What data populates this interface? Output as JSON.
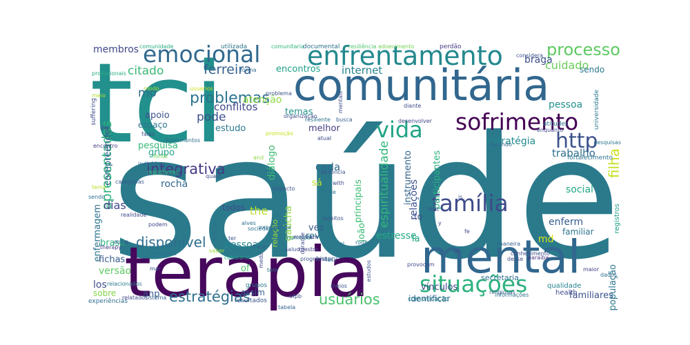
{
  "words": [
    {
      "text": "saúde",
      "color": "#2a7a8c"
    },
    {
      "text": "tci",
      "color": "#22908c"
    },
    {
      "text": "terapia",
      "color": "#46085c"
    },
    {
      "text": "comunitária",
      "color": "#31678e"
    },
    {
      "text": "mental",
      "color": "#31678e"
    },
    {
      "text": "enfrentamento",
      "color": "#23888e"
    },
    {
      "text": "emocional",
      "color": "#30698e"
    },
    {
      "text": "sofrimento",
      "color": "#440154"
    },
    {
      "text": "situações",
      "color": "#2db27d"
    },
    {
      "text": "vida",
      "color": "#20a386"
    },
    {
      "text": "http",
      "color": "#3b528b"
    },
    {
      "text": "família",
      "color": "#3e4a89"
    },
    {
      "text": "processo",
      "color": "#5ec962"
    },
    {
      "text": "problemas",
      "color": "#2c728e"
    },
    {
      "text": "integrativa",
      "color": "#443983"
    },
    {
      "text": "estratégias",
      "color": "#2d708e"
    },
    {
      "text": "usuários",
      "color": "#4ac16d"
    },
    {
      "text": "disponível",
      "color": "#2e6e8e"
    },
    {
      "text": "filha",
      "color": "#c8e020"
    },
    {
      "text": "ferreira",
      "color": "#34618d"
    },
    {
      "text": "citado",
      "color": "#3aba76"
    },
    {
      "text": "mo",
      "color": "#2f6b8e"
    },
    {
      "text": "apresentadas",
      "color": "#2fb47c"
    },
    {
      "text": "espiritualidade",
      "color": "#32b67a"
    },
    {
      "text": "membros",
      "color": "#3f4788"
    },
    {
      "text": "braga",
      "color": "#3d4e8a"
    },
    {
      "text": "cuidado",
      "color": "#6ccd5a"
    },
    {
      "text": "sendo",
      "color": "#2a788e"
    },
    {
      "text": "pessoa",
      "color": "#21918c"
    },
    {
      "text": "trabalho",
      "color": "#2e6f8e"
    },
    {
      "text": "estratégia",
      "color": "#23898e"
    },
    {
      "text": "internet",
      "color": "#26828e"
    },
    {
      "text": "encontros",
      "color": "#1fa188"
    },
    {
      "text": "conflitos",
      "color": "#3f4889"
    },
    {
      "text": "pode",
      "color": "#3c4f8a"
    },
    {
      "text": "estudo",
      "color": "#2a788e"
    },
    {
      "text": "atenção",
      "color": "#90d743"
    },
    {
      "text": "temas",
      "color": "#21918c"
    },
    {
      "text": "apoio",
      "color": "#3a548c"
    },
    {
      "text": "espaço",
      "color": "#2c728e"
    },
    {
      "text": "compreender",
      "color": "#355f8d"
    },
    {
      "text": "pesquisa",
      "color": "#35b779"
    },
    {
      "text": "grupo",
      "color": "#1f9e89"
    },
    {
      "text": "rocha",
      "color": "#31668e"
    },
    {
      "text": "dias",
      "color": "#404688"
    },
    {
      "text": "social",
      "color": "#22a785"
    },
    {
      "text": "enferm",
      "color": "#355e8d"
    },
    {
      "text": "familiar",
      "color": "#2c738e"
    },
    {
      "text": "participantes",
      "color": "#2ab07f"
    },
    {
      "text": "relações",
      "color": "#3b518b"
    },
    {
      "text": "instrumento",
      "color": "#33638d"
    },
    {
      "text": "melhor",
      "color": "#443b84"
    },
    {
      "text": "diálogo",
      "color": "#3fbc73"
    },
    {
      "text": "cada",
      "color": "#30698e"
    },
    {
      "text": "todos",
      "color": "#3e4c8a"
    },
    {
      "text": "the",
      "color": "#b5de2b"
    },
    {
      "text": "gaúcha",
      "color": "#8bd646"
    },
    {
      "text": "vez",
      "color": "#38598c"
    },
    {
      "text": "pessoas",
      "color": "#25848e"
    },
    {
      "text": "rev",
      "color": "#2d708e"
    },
    {
      "text": "joão",
      "color": "#3aba76"
    },
    {
      "text": "estresse",
      "color": "#24aa83"
    },
    {
      "text": "md",
      "color": "#dde318"
    },
    {
      "text": "la",
      "color": "#20a486"
    },
    {
      "text": "to",
      "color": "#3f4889"
    },
    {
      "text": "enfermagem",
      "color": "#2c728e"
    },
    {
      "text": "brasil",
      "color": "#29af7f"
    },
    {
      "text": "fichas",
      "color": "#375a8c"
    },
    {
      "text": "versão",
      "color": "#5ec962"
    },
    {
      "text": "los",
      "color": "#3d4e8a"
    },
    {
      "text": "sobre",
      "color": "#85d54a"
    },
    {
      "text": "anp",
      "color": "#38588c"
    },
    {
      "text": "of",
      "color": "#54c568"
    },
    {
      "text": "assim",
      "color": "#34608d"
    },
    {
      "text": "vínculos",
      "color": "#3f4788"
    },
    {
      "text": "identificar",
      "color": "#33638d"
    },
    {
      "text": "familiares",
      "color": "#3b528b"
    },
    {
      "text": "população",
      "color": "#2a768e"
    },
    {
      "text": "secretaria",
      "color": "#2c718e"
    },
    {
      "text": "sá",
      "color": "#c0df25"
    },
    {
      "text": "relação",
      "color": "#a2da37"
    },
    {
      "text": "principais",
      "color": "#3dbc74"
    },
    {
      "text": "history",
      "color": "#3b518b"
    },
    {
      "text": "experiências",
      "color": "#2e6e8e"
    },
    {
      "text": "comunicação",
      "color": "#23898e"
    },
    {
      "text": "resultados",
      "color": "#3b528b"
    },
    {
      "text": "grupos",
      "color": "#2a778e"
    },
    {
      "text": "qualidade",
      "color": "#26828e"
    },
    {
      "text": "health",
      "color": "#3e4a89"
    },
    {
      "text": "maior",
      "color": "#424086"
    },
    {
      "text": "dados",
      "color": "#2e6d8e"
    },
    {
      "text": "registros",
      "color": "#1fa088"
    },
    {
      "text": "paraiba",
      "color": "#46327e"
    },
    {
      "text": "maneira",
      "color": "#34618d"
    },
    {
      "text": "informações",
      "color": "#2e6f8e"
    },
    {
      "text": "religiosas",
      "color": "#34618d"
    },
    {
      "text": "fortalecimento",
      "color": "#2c728e"
    },
    {
      "text": "fazendo",
      "color": "#31678e"
    },
    {
      "text": "pesquisas",
      "color": "#2b758e"
    },
    {
      "text": "atitudes",
      "color": "#2d718e"
    },
    {
      "text": "enquanto",
      "color": "#3f4788"
    },
    {
      "text": "universidade",
      "color": "#2a788e"
    },
    {
      "text": "considera",
      "color": "#3b528b"
    },
    {
      "text": "comunidade",
      "color": "#25ac82"
    },
    {
      "text": "utilizada",
      "color": "#2c738e"
    },
    {
      "text": "comunitaria",
      "color": "#2fb47c"
    },
    {
      "text": "documental",
      "color": "#2d708e"
    },
    {
      "text": "resiliência",
      "color": "#4ec36b"
    },
    {
      "text": "adoecimento",
      "color": "#75d054"
    },
    {
      "text": "perdão",
      "color": "#443983"
    },
    {
      "text": "modo",
      "color": "#a5db36"
    },
    {
      "text": "usuarios",
      "color": "#cde11d"
    },
    {
      "text": "profissionais",
      "color": "#27ad81"
    },
    {
      "text": "suffering",
      "color": "#3e4989"
    },
    {
      "text": "depoimentos",
      "color": "#2d708e"
    },
    {
      "text": "encontro",
      "color": "#424186"
    },
    {
      "text": "fonte",
      "color": "#6ece58"
    },
    {
      "text": "indivíduos",
      "color": "#31688e"
    },
    {
      "text": "registradas",
      "color": "#3aba76"
    },
    {
      "text": "categorias",
      "color": "#38588c"
    },
    {
      "text": "tema",
      "color": "#b5de2b"
    },
    {
      "text": "realidade",
      "color": "#3e4c8a"
    },
    {
      "text": "podem",
      "color": "#3f4889"
    },
    {
      "text": "outra",
      "color": "#38598c"
    },
    {
      "text": "therapy",
      "color": "#443983"
    },
    {
      "text": "mar",
      "color": "#3b528b"
    },
    {
      "text": "ansiedade",
      "color": "#2c728e"
    },
    {
      "text": "saber",
      "color": "#9dd93b"
    },
    {
      "text": "cotidiano",
      "color": "#1fa188"
    },
    {
      "text": "experiência",
      "color": "#2e6e8e"
    },
    {
      "text": "durante",
      "color": "#3e4a89"
    },
    {
      "text": "programa",
      "color": "#3b528b"
    },
    {
      "text": "relacionados",
      "color": "#2a778e"
    },
    {
      "text": "sistema",
      "color": "#34618d"
    },
    {
      "text": "relatados",
      "color": "#3e4a89"
    },
    {
      "text": "tabela",
      "color": "#33638d"
    },
    {
      "text": "ufpb",
      "color": "#3b528b"
    },
    {
      "text": "estudos",
      "color": "#3b528b"
    },
    {
      "text": "provocam",
      "color": "#3e4c8a"
    },
    {
      "text": "promoção",
      "color": "#c8e020"
    },
    {
      "text": "atual",
      "color": "#3e4a89"
    },
    {
      "text": "busca",
      "color": "#34618d"
    },
    {
      "text": "resiliente",
      "color": "#2c738e"
    },
    {
      "text": "diante",
      "color": "#3e4989"
    },
    {
      "text": "desenvolver",
      "color": "#3f4788"
    },
    {
      "text": "mentais",
      "color": "#3e4c8a"
    },
    {
      "text": "problema",
      "color": "#3b528b"
    },
    {
      "text": "organização",
      "color": "#3e4a89"
    },
    {
      "text": "forma",
      "color": "#31688e"
    },
    {
      "text": "alves",
      "color": "#2e6e8e"
    },
    {
      "text": "medo",
      "color": "#3e4c8a"
    },
    {
      "text": "municipal",
      "color": "#26828e"
    },
    {
      "text": "mestre",
      "color": "#424086"
    },
    {
      "text": "diversas",
      "color": "#2d708e"
    },
    {
      "text": "sociedade",
      "color": "#2d718e"
    },
    {
      "text": "impacto",
      "color": "#3b528b"
    },
    {
      "text": "base",
      "color": "#34618d"
    },
    {
      "text": "ter",
      "color": "#3b528b"
    },
    {
      "text": "and",
      "color": "#90d743"
    },
    {
      "text": "meio",
      "color": "#b5de2b"
    },
    {
      "text": "dia",
      "color": "#3e4a89"
    },
    {
      "text": "falas",
      "color": "#3b528b"
    },
    {
      "text": "quais",
      "color": "#3e4c8a"
    },
    {
      "text": "mostram",
      "color": "#3e4a89"
    },
    {
      "text": "onde",
      "color": "#2d708e"
    },
    {
      "text": "with",
      "color": "#3e4c8a"
    },
    {
      "text": "sujeitos",
      "color": "#3b528b"
    },
    {
      "text": "tem",
      "color": "#2e6e8e"
    },
    {
      "text": "el",
      "color": "#2c738e"
    },
    {
      "text": "pb",
      "color": "#3e4c8a"
    },
    {
      "text": "las",
      "color": "#2d708e"
    },
    {
      "text": "meios",
      "color": "#3b528b"
    },
    {
      "text": "rodas",
      "color": "#2c728e"
    },
    {
      "text": "desse",
      "color": "#3e4a89"
    },
    {
      "text": "conhecimento",
      "color": "#3e4c8a"
    },
    {
      "text": "that",
      "color": "#3b528b"
    },
    {
      "text": "fe",
      "color": "#3e4a89"
    },
    {
      "text": "is",
      "color": "#3b528b"
    },
    {
      "text": "y",
      "color": "#3e4a89"
    },
    {
      "text": "c",
      "color": "#3b528b"
    },
    {
      "text": "salud",
      "color": "#3e4c8a"
    },
    {
      "text": "ausência",
      "color": "#3b528b"
    },
    {
      "text": "sendo",
      "color": "#2c738e"
    }
  ]
}
